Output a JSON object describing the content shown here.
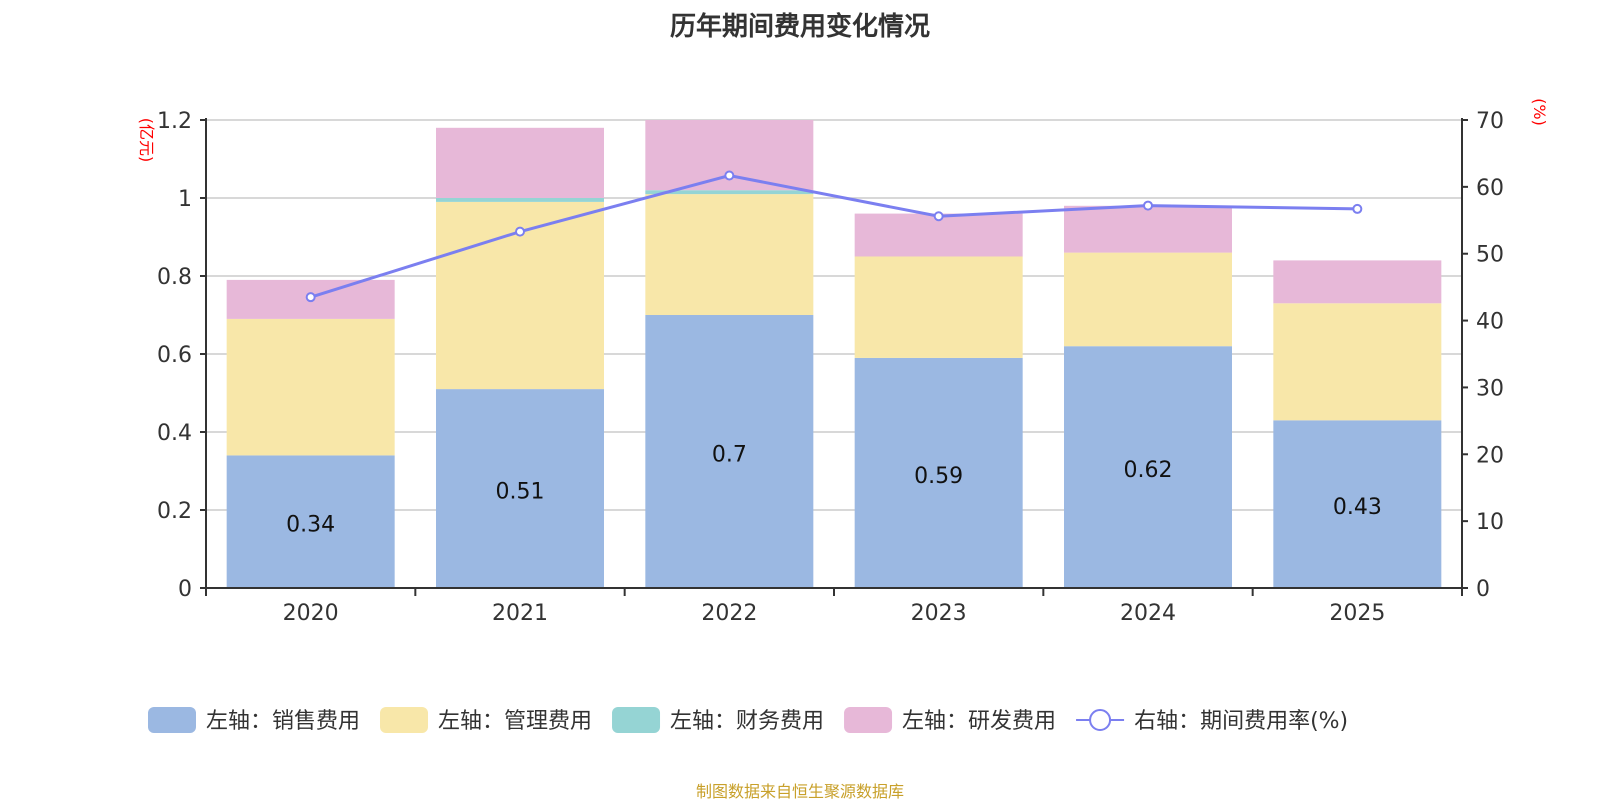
{
  "chart_data": {
    "type": "bar",
    "title": "历年期间费用变化情况",
    "categories": [
      "2020",
      "2021",
      "2022",
      "2023",
      "2024",
      "2025"
    ],
    "left_axis": {
      "unit": "(亿元)",
      "ylim": [
        0,
        1.2
      ],
      "ticks": [
        "0",
        "0.2",
        "0.4",
        "0.6",
        "0.8",
        "1",
        "1.2"
      ]
    },
    "right_axis": {
      "unit": "(%)",
      "ylim": [
        0,
        70
      ],
      "ticks": [
        "0",
        "10",
        "20",
        "30",
        "40",
        "50",
        "60",
        "70"
      ]
    },
    "stacked": true,
    "grid": true,
    "legend_position": "bottom",
    "series": [
      {
        "name": "左轴：销售费用",
        "color": "#9bb8e2",
        "values": [
          0.34,
          0.51,
          0.7,
          0.59,
          0.62,
          0.43
        ],
        "labels": [
          "0.34",
          "0.51",
          "0.7",
          "0.59",
          "0.62",
          "0.43"
        ]
      },
      {
        "name": "左轴：管理费用",
        "color": "#f8e7a9",
        "values": [
          0.35,
          0.48,
          0.31,
          0.26,
          0.24,
          0.3
        ]
      },
      {
        "name": "左轴：财务费用",
        "color": "#95d4d4",
        "values": [
          0.0,
          0.01,
          0.01,
          0.0,
          0.0,
          0.0
        ]
      },
      {
        "name": "左轴：研发费用",
        "color": "#e7b8d8",
        "values": [
          0.1,
          0.18,
          0.2,
          0.11,
          0.12,
          0.11
        ]
      },
      {
        "name": "右轴：期间费用率(%)",
        "type": "line",
        "axis": "right",
        "color": "#7b7ff0",
        "values": [
          43.5,
          53.3,
          61.7,
          55.6,
          57.2,
          56.7
        ]
      }
    ]
  },
  "source": "制图数据来自恒生聚源数据库"
}
